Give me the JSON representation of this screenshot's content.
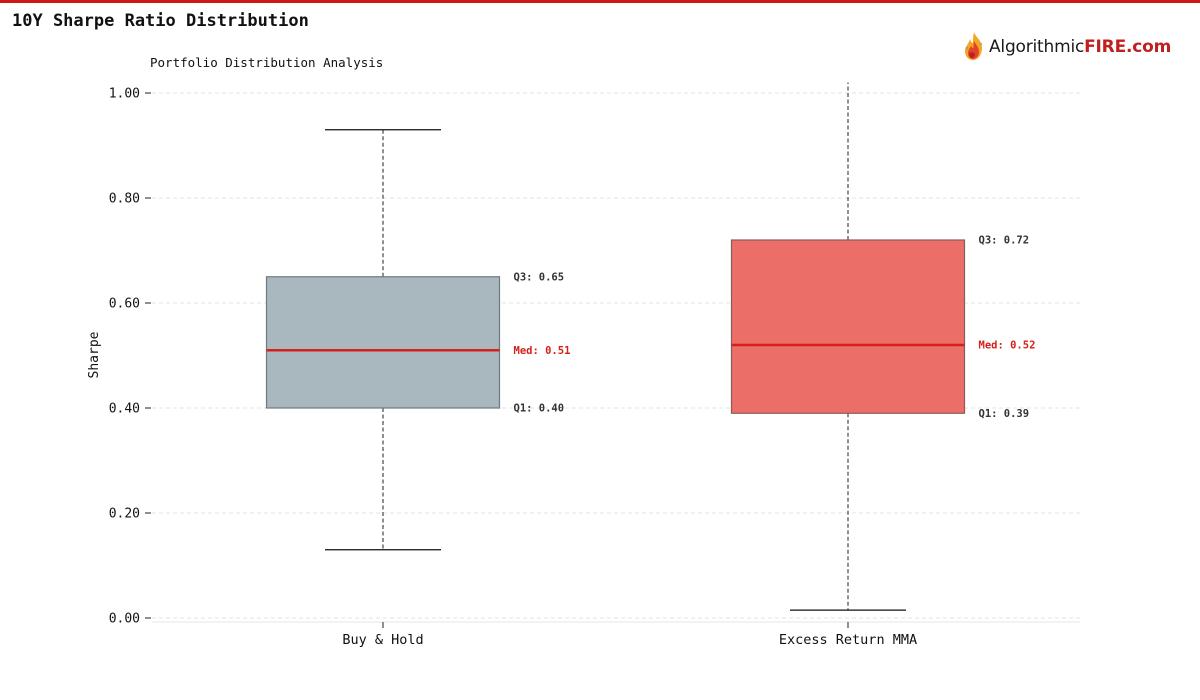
{
  "page": {
    "title": "10Y Sharpe Ratio Distribution",
    "accent_color": "#cc1a12"
  },
  "logo": {
    "text_main": "Algorithmic",
    "text_accent": "FIRE.com",
    "icon": "flame-icon",
    "accent_color": "#c0201f"
  },
  "chart_data": {
    "type": "box",
    "title": "Portfolio Distribution Analysis",
    "xlabel": "",
    "ylabel": "Sharpe",
    "ylim": [
      0.0,
      1.0
    ],
    "yticks": [
      "0.00",
      "0.20",
      "0.40",
      "0.60",
      "0.80",
      "1.00"
    ],
    "grid": true,
    "categories": [
      "Buy & Hold",
      "Excess Return MMA"
    ],
    "series": [
      {
        "whisker_low": 0.13,
        "q1": 0.4,
        "median": 0.51,
        "q3": 0.65,
        "whisker_high": 0.93,
        "q1_label": "Q1: 0.40",
        "median_label": "Med: 0.51",
        "q3_label": "Q3: 0.65",
        "fill": "#a9b7be",
        "edge": "#6e7a80"
      },
      {
        "whisker_low": 0.015,
        "q1": 0.39,
        "median": 0.52,
        "q3": 0.72,
        "whisker_high": 1.02,
        "q1_label": "Q1: 0.39",
        "median_label": "Med: 0.52",
        "q3_label": "Q3: 0.72",
        "fill": "#ec6e68",
        "edge": "#8a5a57"
      }
    ],
    "median_color": "#d6201a",
    "whisker_color": "#222222",
    "label_color": "#333333"
  }
}
